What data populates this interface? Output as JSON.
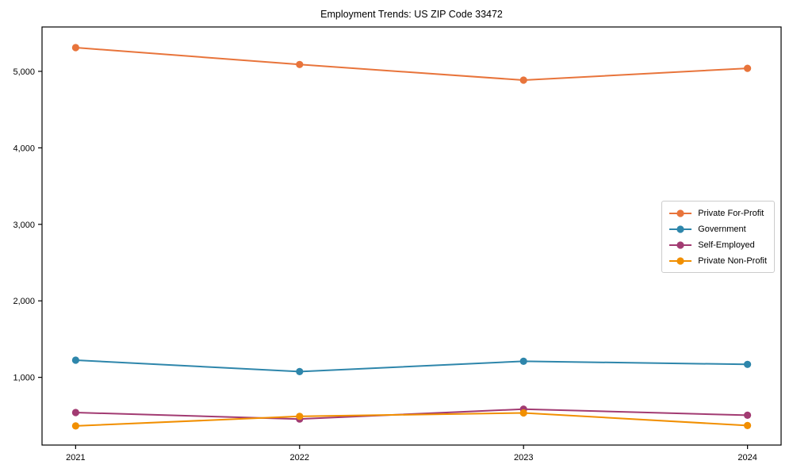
{
  "chart_data": {
    "type": "line",
    "title": "Employment Trends: US ZIP Code 33472",
    "categories": [
      "2021",
      "2022",
      "2023",
      "2024"
    ],
    "x_values": [
      2021,
      2022,
      2023,
      2024
    ],
    "series": [
      {
        "name": "Private For-Profit",
        "color": "#E8743B",
        "values": [
          5310,
          5090,
          4885,
          5040
        ]
      },
      {
        "name": "Government",
        "color": "#2E86AB",
        "values": [
          1225,
          1075,
          1210,
          1170
        ]
      },
      {
        "name": "Self-Employed",
        "color": "#A23B72",
        "values": [
          540,
          455,
          585,
          505
        ]
      },
      {
        "name": "Private Non-Profit",
        "color": "#F18F01",
        "values": [
          365,
          490,
          535,
          370
        ]
      }
    ],
    "yticks": [
      1000,
      2000,
      3000,
      4000,
      5000
    ],
    "ytick_labels": [
      "1,000",
      "2,000",
      "3,000",
      "4,000",
      "5,000"
    ],
    "xlabel": "",
    "ylabel": "",
    "xlim": [
      2020.85,
      2024.15
    ],
    "ylim": [
      115,
      5580
    ],
    "grid": false,
    "legend_position": "center right",
    "axis_color": "#000000",
    "marker": "circle",
    "marker_radius": 4.6,
    "line_width": 2
  }
}
